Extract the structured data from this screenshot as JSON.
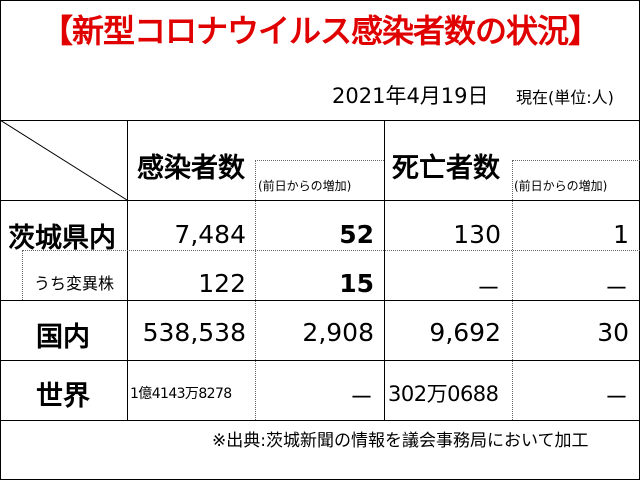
{
  "title": "【新型コロナウイルス感染者数の状況】",
  "date": "2021年4月19日",
  "unit": "現在(単位:人)",
  "headers": {
    "infected": "感染者数",
    "infected_increase": "(前日からの増加)",
    "deaths": "死亡者数",
    "deaths_increase": "(前日からの増加)"
  },
  "rows": [
    {
      "label": "茨城県内",
      "infected": "7,484",
      "infected_increase": "52",
      "deaths": "130",
      "deaths_increase": "1"
    },
    {
      "label": "うち変異株",
      "infected": "122",
      "infected_increase": "15",
      "deaths": "－",
      "deaths_increase": "－"
    },
    {
      "label": "国内",
      "infected": "538,538",
      "infected_increase": "2,908",
      "deaths": "9,692",
      "deaths_increase": "30"
    },
    {
      "label": "世界",
      "infected": "1億4143万8278",
      "infected_increase": "－",
      "deaths": "302万0688",
      "deaths_increase": "－"
    }
  ],
  "source_note": "※出典:茨城新聞の情報を議会事務局において加工"
}
